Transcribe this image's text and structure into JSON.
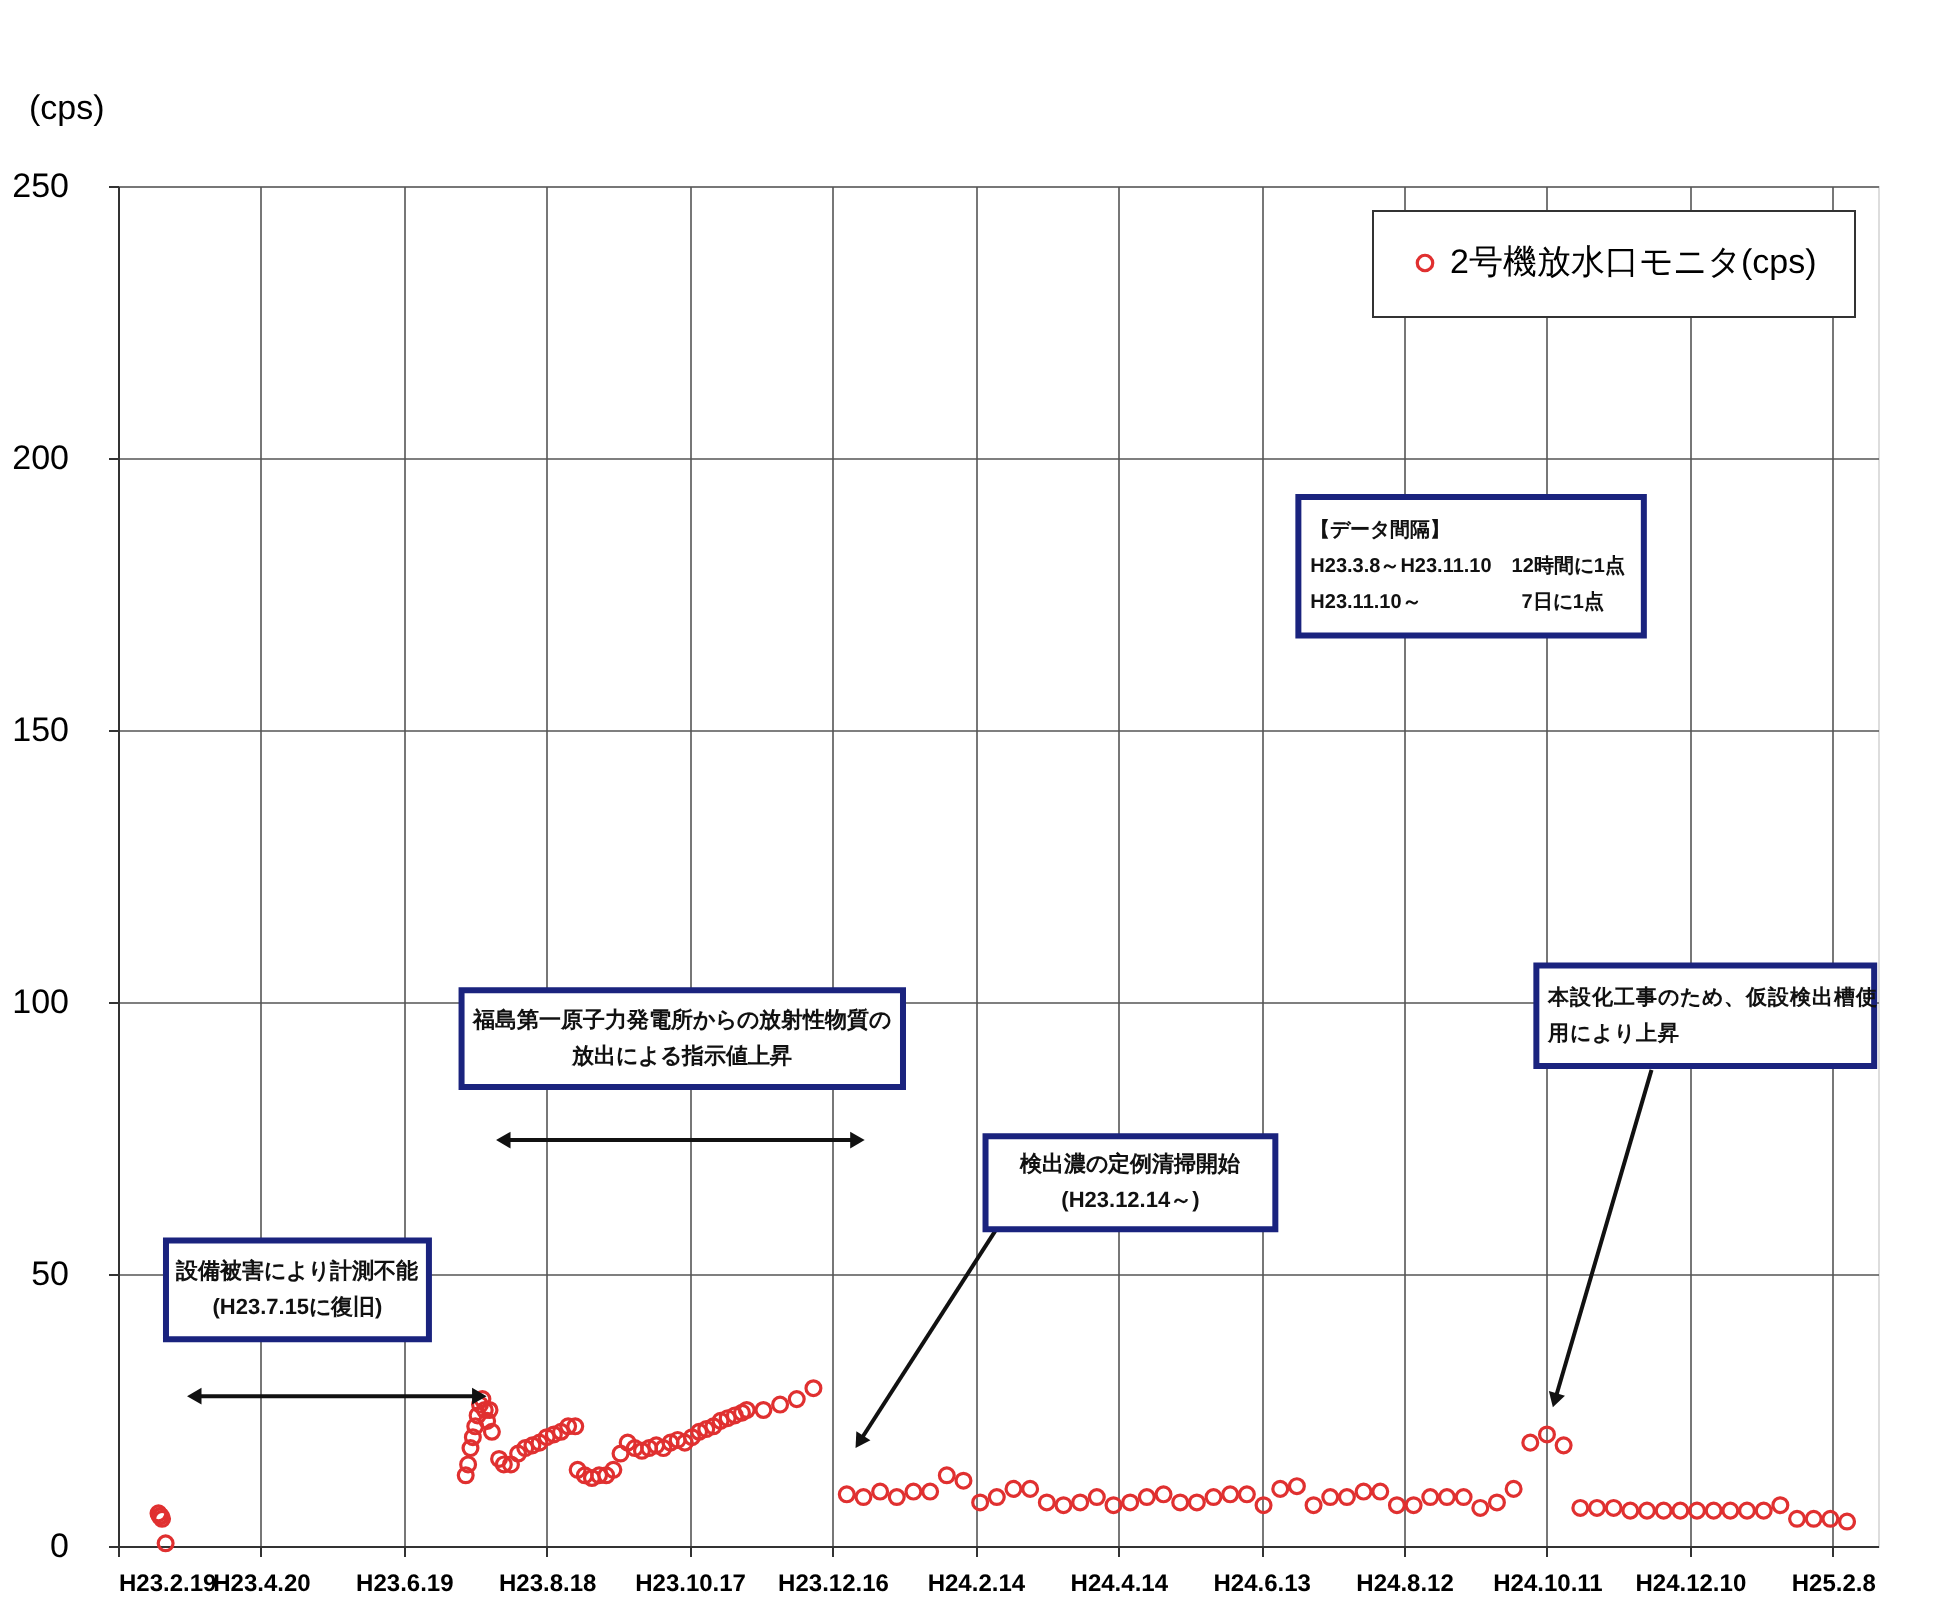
{
  "chart_data": {
    "type": "scatter",
    "ylabel": "(cps)",
    "legend": "top right",
    "grid": true,
    "marker": "circle",
    "xlim": [
      "2011-02-19",
      "2013-02-27"
    ],
    "ylim": [
      0,
      250
    ],
    "yticks": [
      0,
      50,
      100,
      150,
      200,
      250
    ],
    "xticks": [
      {
        "value": "2011-02-19",
        "label": "H23.2.19"
      },
      {
        "value": "2011-04-20",
        "label": "H23.4.20"
      },
      {
        "value": "2011-06-19",
        "label": "H23.6.19"
      },
      {
        "value": "2011-08-18",
        "label": "H23.8.18"
      },
      {
        "value": "2011-10-17",
        "label": "H23.10.17"
      },
      {
        "value": "2011-12-16",
        "label": "H23.12.16"
      },
      {
        "value": "2012-02-14",
        "label": "H24.2.14"
      },
      {
        "value": "2012-04-14",
        "label": "H24.4.14"
      },
      {
        "value": "2012-06-13",
        "label": "H24.6.13"
      },
      {
        "value": "2012-08-12",
        "label": "H24.8.12"
      },
      {
        "value": "2012-10-11",
        "label": "H24.10.11"
      },
      {
        "value": "2012-12-10",
        "label": "H24.12.10"
      },
      {
        "value": "2013-02-08",
        "label": "H25.2.8"
      }
    ],
    "annotations": [
      "【データ間隔】\nH23.3.8～H23.11.10　12時間に1点\nH23.11.10～　　　　　7日に1点",
      "設備被害により計測不能\n(H23.7.15に復旧)",
      "福島第一原子力発電所からの放射性物質の放出による指示値上昇",
      "検出濃の定例清掃開始\n(H23.12.14～)",
      "本設化工事のため、仮設検出槽使用により上昇"
    ],
    "series": [
      {
        "name": "2号機放水口モニタ(cps)",
        "color": "#e03030",
        "x": [
          "2011-03-08",
          "2011-03-08T12:00",
          "2011-03-09",
          "2011-03-09T12:00",
          "2011-03-11",
          "2011-07-15",
          "2011-07-16",
          "2011-07-17",
          "2011-07-18",
          "2011-07-19",
          "2011-07-20",
          "2011-07-21",
          "2011-07-22",
          "2011-07-23",
          "2011-07-24",
          "2011-07-25",
          "2011-07-26",
          "2011-07-29",
          "2011-07-31",
          "2011-08-03",
          "2011-08-06",
          "2011-08-09",
          "2011-08-12",
          "2011-08-15",
          "2011-08-18",
          "2011-08-21",
          "2011-08-24",
          "2011-08-27",
          "2011-08-30",
          "2011-08-31",
          "2011-09-03",
          "2011-09-06",
          "2011-09-09",
          "2011-09-12",
          "2011-09-15",
          "2011-09-18",
          "2011-09-21",
          "2011-09-24",
          "2011-09-27",
          "2011-09-30",
          "2011-10-03",
          "2011-10-06",
          "2011-10-09",
          "2011-10-12",
          "2011-10-15",
          "2011-10-18",
          "2011-10-21",
          "2011-10-24",
          "2011-10-27",
          "2011-10-30",
          "2011-11-02",
          "2011-11-05",
          "2011-11-08",
          "2011-11-10",
          "2011-11-17",
          "2011-11-24",
          "2011-12-01",
          "2011-12-08",
          "2011-12-22",
          "2011-12-29",
          "2012-01-05",
          "2012-01-12",
          "2012-01-19",
          "2012-01-26",
          "2012-02-02",
          "2012-02-09",
          "2012-02-16",
          "2012-02-23",
          "2012-03-01",
          "2012-03-08",
          "2012-03-15",
          "2012-03-22",
          "2012-03-29",
          "2012-04-05",
          "2012-04-12",
          "2012-04-19",
          "2012-04-26",
          "2012-05-03",
          "2012-05-10",
          "2012-05-17",
          "2012-05-24",
          "2012-05-31",
          "2012-06-07",
          "2012-06-14",
          "2012-06-21",
          "2012-06-28",
          "2012-07-05",
          "2012-07-12",
          "2012-07-19",
          "2012-07-26",
          "2012-08-02",
          "2012-08-09",
          "2012-08-16",
          "2012-08-23",
          "2012-08-30",
          "2012-09-06",
          "2012-09-13",
          "2012-09-20",
          "2012-09-27",
          "2012-10-04",
          "2012-10-11",
          "2012-10-18",
          "2012-10-25",
          "2012-11-01",
          "2012-11-08",
          "2012-11-15",
          "2012-11-22",
          "2012-11-29",
          "2012-12-06",
          "2012-12-13",
          "2012-12-20",
          "2012-12-27",
          "2013-01-03",
          "2013-01-10",
          "2013-01-17",
          "2013-01-24",
          "2013-01-31",
          "2013-02-07",
          "2013-02-14"
        ],
        "values": [
          6,
          5.5,
          5.5,
          5,
          0.5,
          13,
          15,
          18,
          20,
          22,
          24,
          26,
          27,
          25,
          23,
          25,
          21,
          16,
          15,
          15,
          17,
          18,
          18.5,
          19,
          20,
          20.5,
          21,
          22,
          22,
          14,
          13,
          12.5,
          13,
          13,
          14,
          17,
          19,
          18,
          17.5,
          18,
          18.5,
          18,
          19,
          19.5,
          19,
          20,
          21,
          21.5,
          22,
          23,
          23.5,
          24,
          24.5,
          25,
          25,
          26,
          27,
          29,
          9.5,
          9,
          10,
          9,
          10,
          10,
          13,
          12,
          8,
          9,
          10.5,
          10.5,
          8,
          7.5,
          8,
          9,
          7.5,
          8,
          9,
          9.5,
          8,
          8,
          9,
          9.5,
          9.5,
          7.5,
          10.5,
          11,
          7.5,
          9,
          9,
          10,
          10,
          7.5,
          7.5,
          9,
          9,
          9,
          7,
          8,
          10.5,
          19,
          20.5,
          18.5,
          7,
          7,
          7,
          6.5,
          6.5,
          6.5,
          6.5,
          6.5,
          6.5,
          6.5,
          6.5,
          6.5,
          7.5,
          5,
          5,
          5,
          4.5
        ]
      }
    ]
  }
}
